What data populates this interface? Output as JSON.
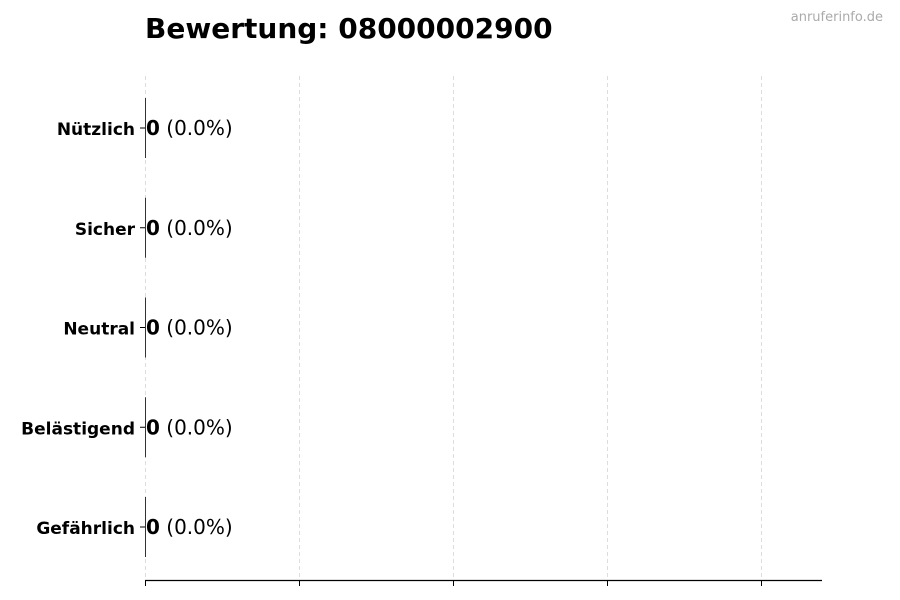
{
  "title": "Bewertung: 08000002900",
  "watermark": "anruferinfo.de",
  "chart_data": {
    "type": "bar",
    "orientation": "horizontal",
    "title": "Bewertung: 08000002900",
    "categories": [
      "Nützlich",
      "Sicher",
      "Neutral",
      "Belästigend",
      "Gefährlich"
    ],
    "values": [
      0,
      0,
      0,
      0,
      0
    ],
    "data_labels": [
      "0 (0.0%)",
      "0 (0.0%)",
      "0 (0.0%)",
      "0 (0.0%)",
      "0 (0.0%)"
    ],
    "label_counts": [
      "0",
      "0",
      "0",
      "0",
      "0"
    ],
    "label_percents": [
      "(0.0%)",
      "(0.0%)",
      "(0.0%)",
      "(0.0%)",
      "(0.0%)"
    ],
    "xlabel": "",
    "ylabel": "",
    "xtick_count": 5,
    "grid": "x dashed",
    "colors": {
      "grid": "#dddddd",
      "axis": "#000000",
      "bar": "#333333"
    }
  }
}
